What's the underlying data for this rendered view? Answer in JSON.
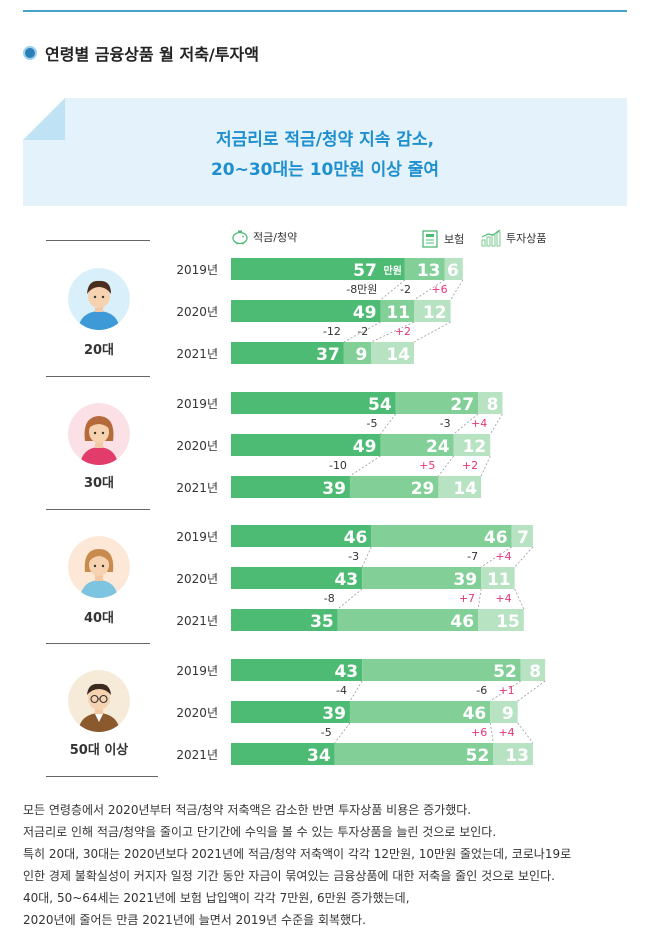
{
  "section_title": "연령별 금융상품 월 저축/투자액",
  "banner": {
    "line1": "저금리로 적금/청약 지속 감소,",
    "line2": "20~30대는 10만원 이상 줄여"
  },
  "legend": {
    "savings": "적금/청약",
    "insurance": "보험",
    "investment": "투자상품"
  },
  "colors": {
    "savings": "#4dbb74",
    "insurance": "#83cf98",
    "investment": "#b7e3c3",
    "positive": "#e8337a",
    "negative": "#333333",
    "accent": "#1e8fcf"
  },
  "icons": [
    "piggy-bank-icon",
    "insurance-document-icon",
    "investment-chart-icon"
  ],
  "unit_label": "만원",
  "chart_data": {
    "type": "bar",
    "stacked": true,
    "orientation": "horizontal",
    "series_names": [
      "적금/청약",
      "보험",
      "투자상품"
    ],
    "groups": [
      {
        "age": "20대",
        "avatar_icon": "young-man-avatar-icon",
        "years": [
          {
            "year": "2019년",
            "values": [
              57,
              13,
              6
            ]
          },
          {
            "year": "2020년",
            "values": [
              49,
              11,
              12
            ]
          },
          {
            "year": "2021년",
            "values": [
              37,
              9,
              14
            ]
          }
        ],
        "changes": [
          [
            "-8만원",
            "-2",
            "+6"
          ],
          [
            "-12",
            "-2",
            "+2"
          ]
        ]
      },
      {
        "age": "30대",
        "avatar_icon": "young-woman-avatar-icon",
        "years": [
          {
            "year": "2019년",
            "values": [
              54,
              27,
              8
            ]
          },
          {
            "year": "2020년",
            "values": [
              49,
              24,
              12
            ]
          },
          {
            "year": "2021년",
            "values": [
              39,
              29,
              14
            ]
          }
        ],
        "changes": [
          [
            "-5",
            "-3",
            "+4"
          ],
          [
            "-10",
            "+5",
            "+2"
          ]
        ]
      },
      {
        "age": "40대",
        "avatar_icon": "middle-aged-woman-avatar-icon",
        "years": [
          {
            "year": "2019년",
            "values": [
              46,
              46,
              7
            ]
          },
          {
            "year": "2020년",
            "values": [
              43,
              39,
              11
            ]
          },
          {
            "year": "2021년",
            "values": [
              35,
              46,
              15
            ]
          }
        ],
        "changes": [
          [
            "-3",
            "-7",
            "+4"
          ],
          [
            "-8",
            "+7",
            "+4"
          ]
        ]
      },
      {
        "age": "50대 이상",
        "avatar_icon": "older-man-glasses-avatar-icon",
        "years": [
          {
            "year": "2019년",
            "values": [
              43,
              52,
              8
            ]
          },
          {
            "year": "2020년",
            "values": [
              39,
              46,
              9
            ]
          },
          {
            "year": "2021년",
            "values": [
              34,
              52,
              13
            ]
          }
        ],
        "changes": [
          [
            "-4",
            "-6",
            "+1"
          ],
          [
            "-5",
            "+6",
            "+4"
          ]
        ]
      }
    ]
  },
  "body_text": [
    "모든 연령층에서 2020년부터 적금/청약 저축액은 감소한 반면 투자상품 비용은 증가했다.",
    "저금리로 인해 적금/청약을 줄이고 단기간에 수익을 볼 수 있는 투자상품을 늘린 것으로 보인다.",
    "특히 20대, 30대는 2020년보다 2021년에 적금/청약 저축액이 각각 12만원, 10만원 줄었는데, 코로나19로",
    "인한 경제 불확실성이 커지자 일정 기간 동안 자금이 묶여있는 금융상품에 대한 저축을 줄인 것으로 보인다.",
    "40대, 50~64세는 2021년에 보험 납입액이 각각 7만원, 6만원 증가했는데,",
    "2020년에 줄어든 만큼 2021년에 늘면서 2019년 수준을 회복했다."
  ]
}
